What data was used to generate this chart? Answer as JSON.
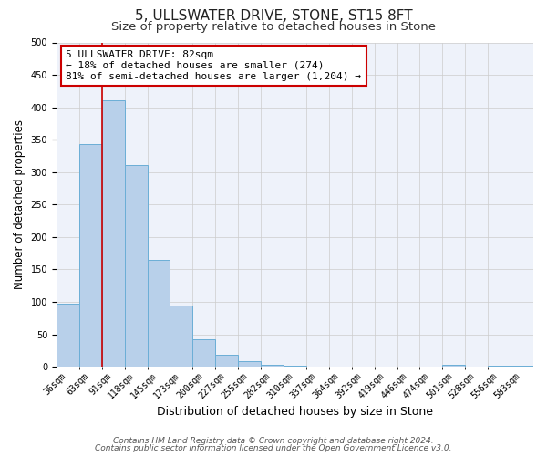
{
  "title": "5, ULLSWATER DRIVE, STONE, ST15 8FT",
  "subtitle": "Size of property relative to detached houses in Stone",
  "xlabel": "Distribution of detached houses by size in Stone",
  "ylabel": "Number of detached properties",
  "bin_labels": [
    "36sqm",
    "63sqm",
    "91sqm",
    "118sqm",
    "145sqm",
    "173sqm",
    "200sqm",
    "227sqm",
    "255sqm",
    "282sqm",
    "310sqm",
    "337sqm",
    "364sqm",
    "392sqm",
    "419sqm",
    "446sqm",
    "474sqm",
    "501sqm",
    "528sqm",
    "556sqm",
    "583sqm"
  ],
  "bar_heights": [
    97,
    343,
    411,
    311,
    164,
    95,
    43,
    18,
    8,
    3,
    1,
    0,
    0,
    0,
    0,
    0,
    0,
    3,
    0,
    2,
    2
  ],
  "bar_color": "#b8d0ea",
  "bar_edge_color": "#6baed6",
  "bar_edge_width": 0.7,
  "vline_color": "#cc0000",
  "annotation_line1": "5 ULLSWATER DRIVE: 82sqm",
  "annotation_line2": "← 18% of detached houses are smaller (274)",
  "annotation_line3": "81% of semi-detached houses are larger (1,204) →",
  "ylim": [
    0,
    500
  ],
  "yticks": [
    0,
    50,
    100,
    150,
    200,
    250,
    300,
    350,
    400,
    450,
    500
  ],
  "grid_color": "#cccccc",
  "bg_color": "#eef2fa",
  "footer_line1": "Contains HM Land Registry data © Crown copyright and database right 2024.",
  "footer_line2": "Contains public sector information licensed under the Open Government Licence v3.0.",
  "title_fontsize": 11,
  "subtitle_fontsize": 9.5,
  "xlabel_fontsize": 9,
  "ylabel_fontsize": 8.5,
  "tick_fontsize": 7,
  "annotation_fontsize": 8,
  "footer_fontsize": 6.5
}
